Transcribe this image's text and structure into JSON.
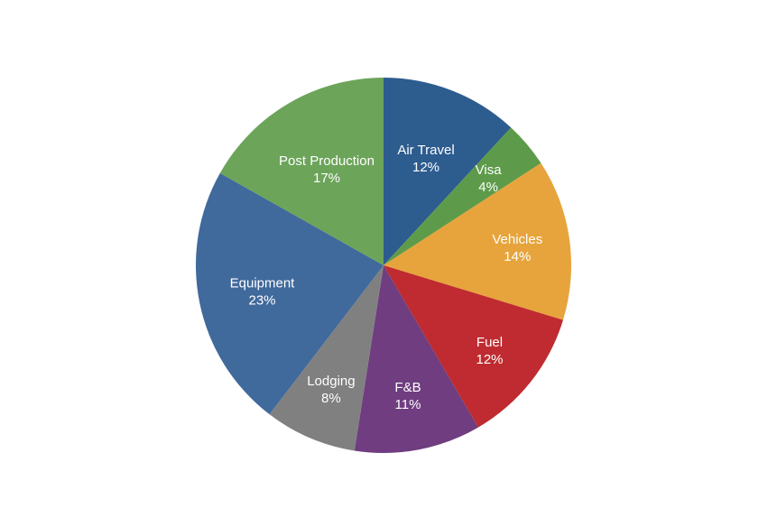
{
  "chart_data": {
    "type": "pie",
    "title": "",
    "slices": [
      {
        "label": "Air Travel",
        "value_label": "12%",
        "value": 12,
        "color": "#2d5c8f"
      },
      {
        "label": "Visa",
        "value_label": "4%",
        "value": 4,
        "color": "#5d9b4a"
      },
      {
        "label": "Vehicles",
        "value_label": "14%",
        "value": 14,
        "color": "#e7a43c"
      },
      {
        "label": "Fuel",
        "value_label": "12%",
        "value": 12,
        "color": "#bf2b30"
      },
      {
        "label": "F&B",
        "value_label": "11%",
        "value": 11,
        "color": "#6f3d80"
      },
      {
        "label": "Lodging",
        "value_label": "8%",
        "value": 8,
        "color": "#808080"
      },
      {
        "label": "Equipment",
        "value_label": "23%",
        "value": 23,
        "color": "#40699c"
      },
      {
        "label": "Post Production",
        "value_label": "17%",
        "value": 17,
        "color": "#6ca45a"
      }
    ],
    "start_angle": "12 o'clock",
    "direction": "clockwise",
    "legend": "none",
    "labels": "inside slices"
  }
}
